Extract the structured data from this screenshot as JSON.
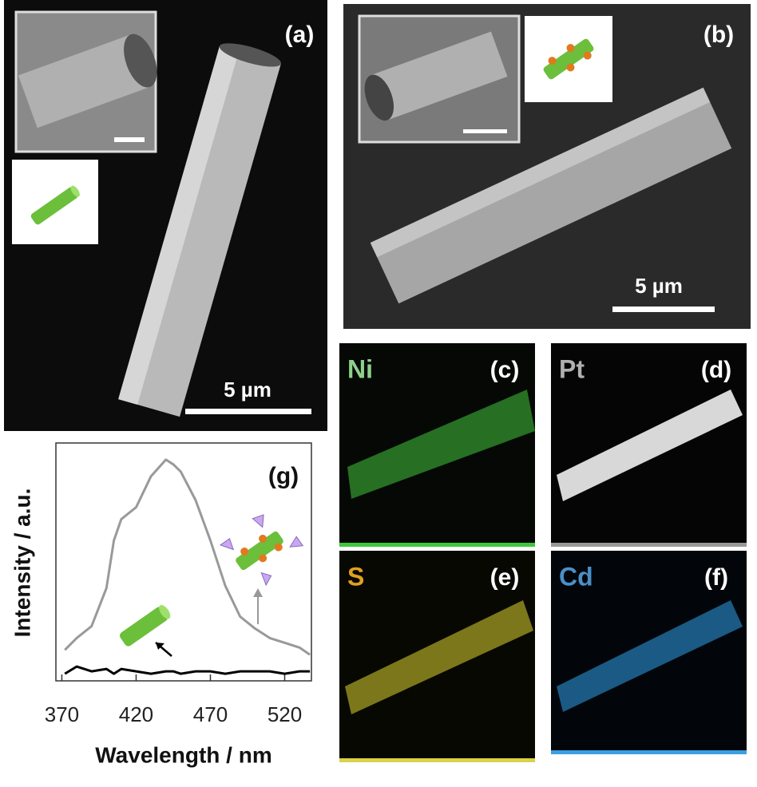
{
  "panels": {
    "a": {
      "label": "(a)",
      "scale_bar": "5 µm"
    },
    "b": {
      "label": "(b)",
      "scale_bar": "5 µm"
    },
    "c": {
      "label": "(c)",
      "element": "Ni"
    },
    "d": {
      "label": "(d)",
      "element": "Pt"
    },
    "e": {
      "label": "(e)",
      "element": "S"
    },
    "f": {
      "label": "(f)",
      "element": "Cd"
    }
  },
  "chart_data": {
    "type": "line",
    "label": "(g)",
    "xlabel": "Wavelength / nm",
    "ylabel": "Intensity / a.u.",
    "x": [
      372,
      380,
      390,
      400,
      405,
      410,
      420,
      430,
      440,
      445,
      450,
      460,
      470,
      480,
      490,
      500,
      510,
      520,
      530,
      537
    ],
    "series": [
      {
        "color": "#999999",
        "values": [
          13,
          18,
          23,
          39,
          59,
          68,
          73,
          86,
          93,
          91,
          88,
          76,
          59,
          40,
          27,
          22,
          18,
          16,
          14,
          11
        ]
      },
      {
        "color": "#000000",
        "values": [
          3,
          6,
          4,
          5,
          3,
          5,
          4,
          3,
          4,
          4,
          3,
          4,
          4,
          3,
          4,
          4,
          4,
          3,
          4,
          4
        ]
      }
    ],
    "xlim": [
      366,
      538
    ],
    "xticks": [
      370,
      420,
      470,
      520
    ],
    "ylim": [
      0,
      100
    ]
  }
}
